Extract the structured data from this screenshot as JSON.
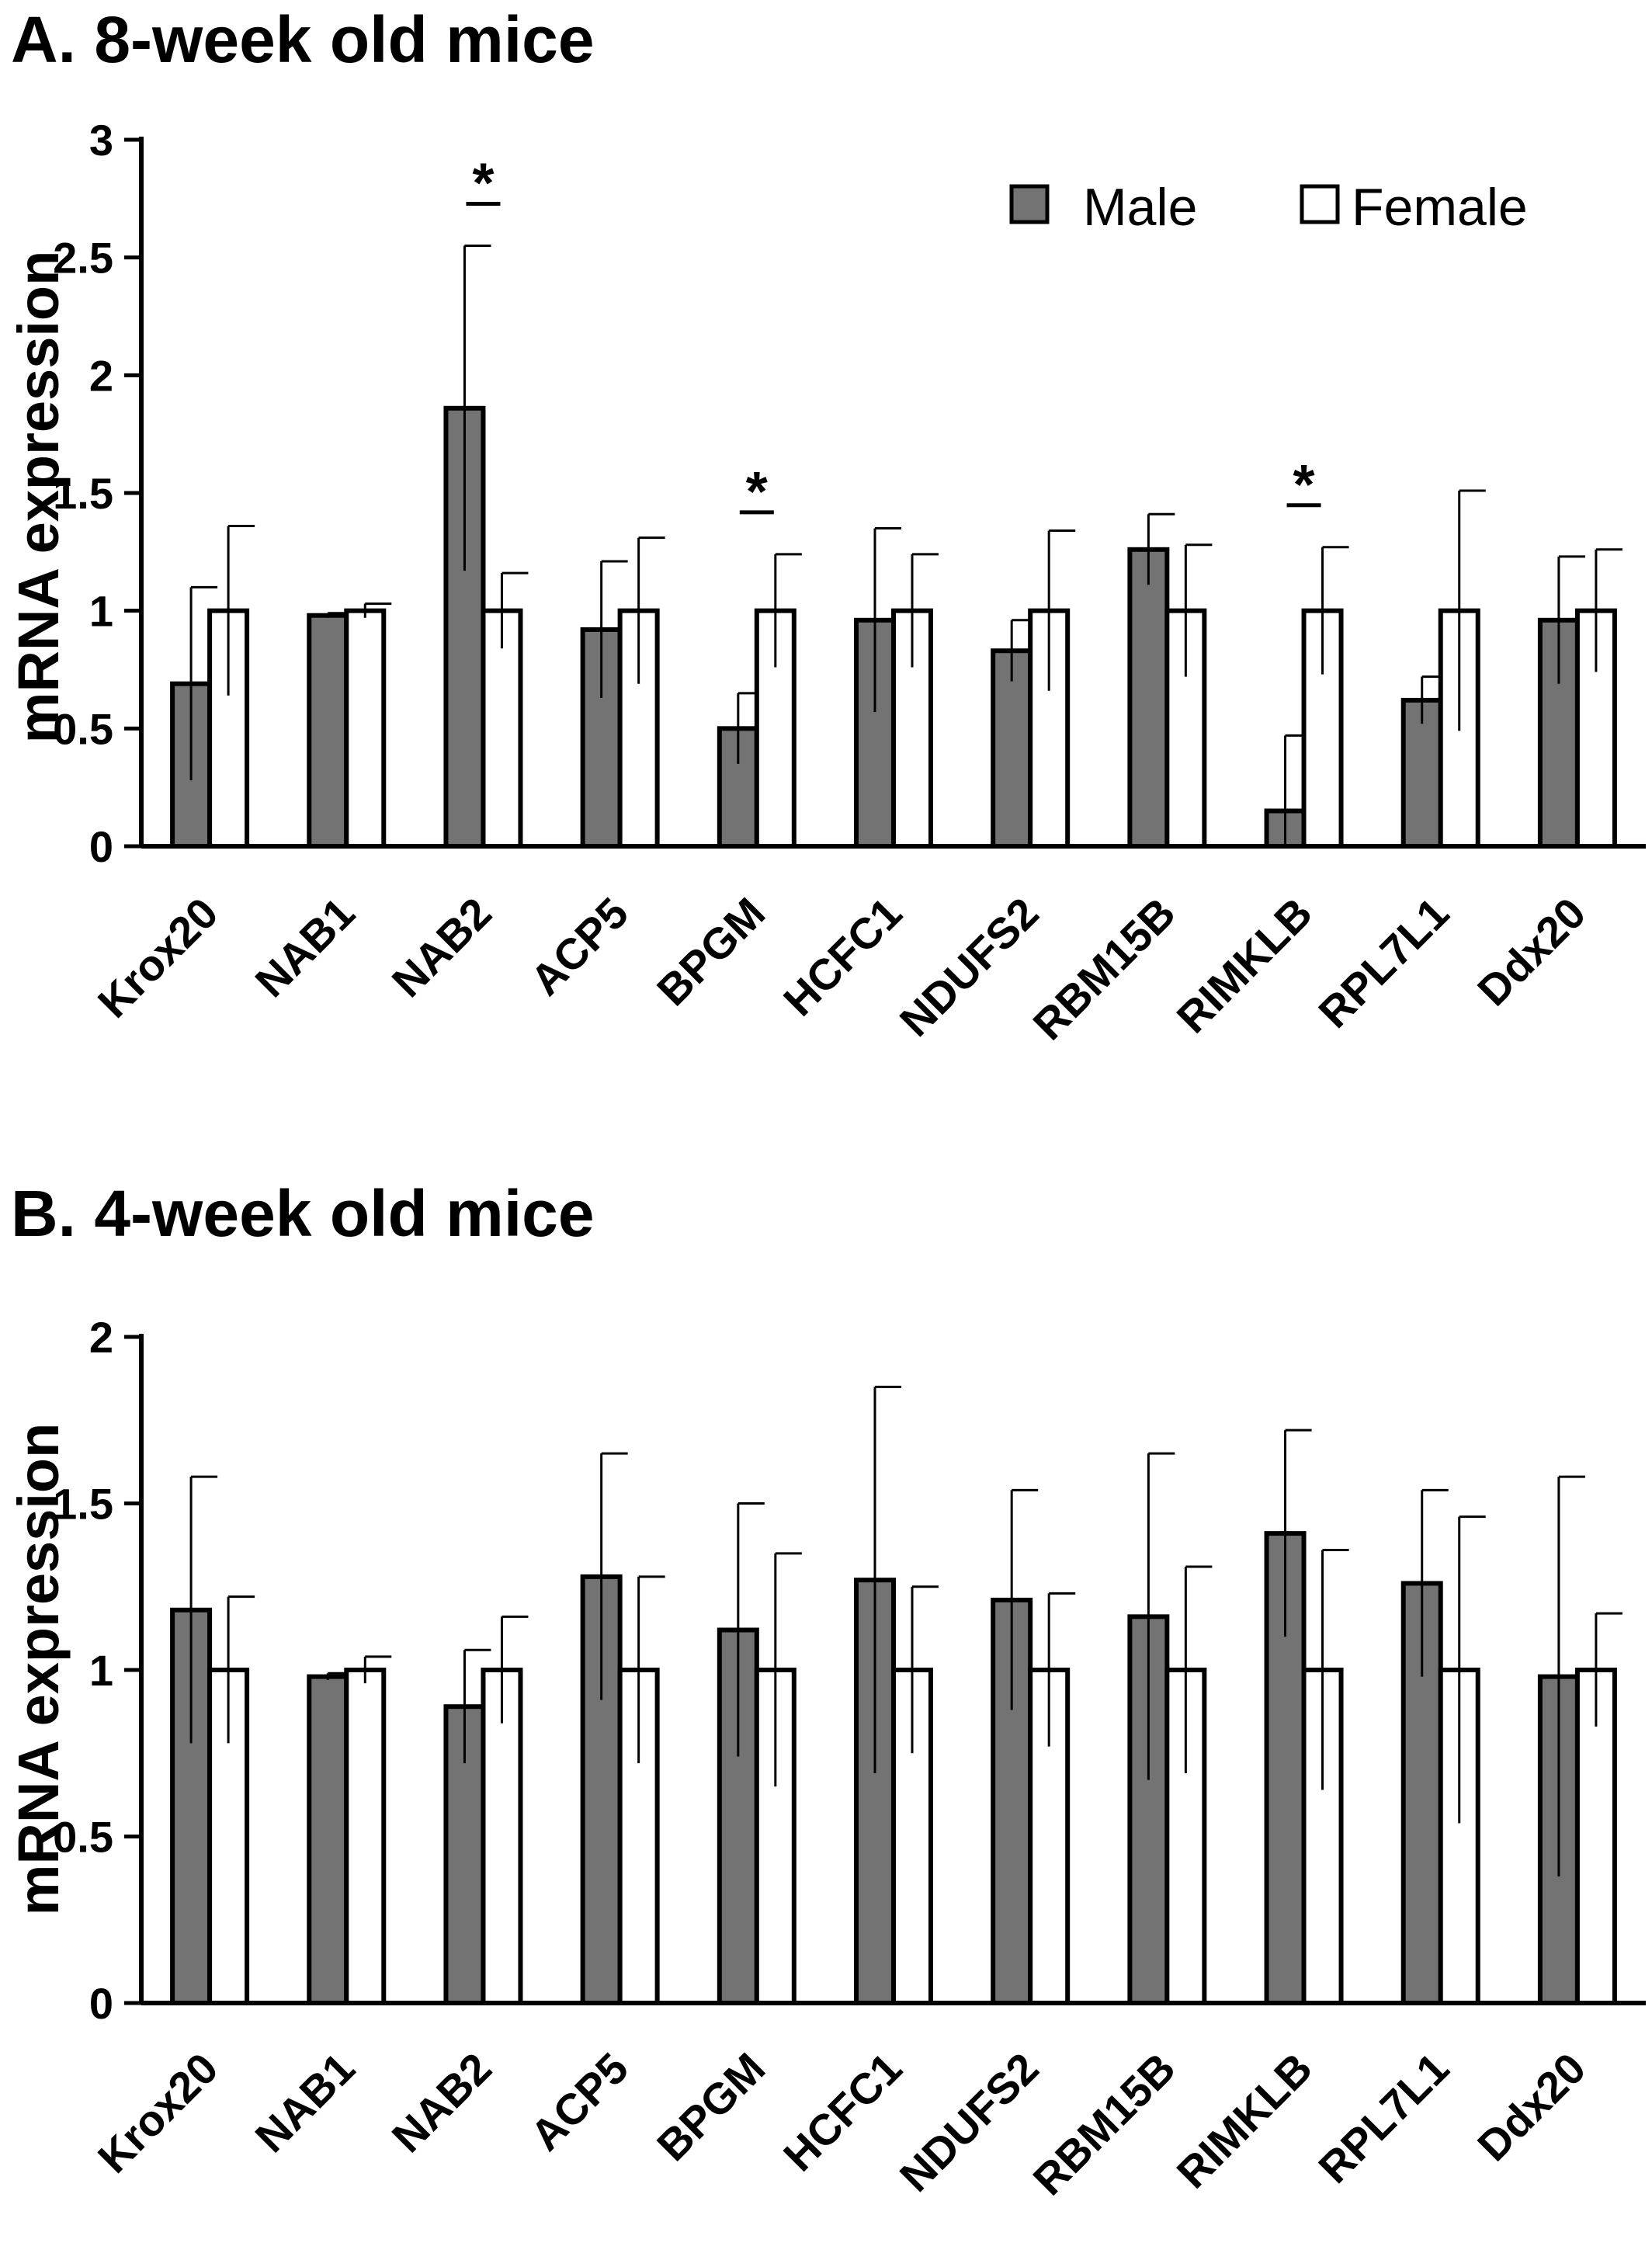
{
  "colors": {
    "male": "#737373",
    "female": "#ffffff",
    "stroke": "#000000"
  },
  "legend": {
    "male": "Male",
    "female": "Female"
  },
  "chart_data": [
    {
      "type": "bar",
      "title": "A. 8-week old mice",
      "xlabel": "",
      "ylabel": "mRNA expression",
      "ylim": [
        0,
        3
      ],
      "yticks": [
        "0",
        "0.5",
        "1",
        "1.5",
        "2",
        "2.5",
        "3"
      ],
      "legend_position": "top-right",
      "categories": [
        "Krox20",
        "NAB1",
        "NAB2",
        "ACP5",
        "BPGM",
        "HCFC1",
        "NDUFS2",
        "RBM15B",
        "RIMKLB",
        "RPL7L1",
        "Ddx20"
      ],
      "series": [
        {
          "name": "Male",
          "values": [
            0.69,
            0.98,
            1.86,
            0.92,
            0.5,
            0.96,
            0.83,
            1.26,
            0.15,
            0.62,
            0.96
          ],
          "errors": [
            0.41,
            0.01,
            0.69,
            0.29,
            0.15,
            0.39,
            0.13,
            0.15,
            0.32,
            0.1,
            0.27
          ]
        },
        {
          "name": "Female",
          "values": [
            1.0,
            1.0,
            1.0,
            1.0,
            1.0,
            1.0,
            1.0,
            1.0,
            1.0,
            1.0,
            1.0
          ],
          "errors": [
            0.36,
            0.03,
            0.16,
            0.31,
            0.24,
            0.24,
            0.34,
            0.28,
            0.27,
            0.51,
            0.26
          ]
        }
      ],
      "significance": {
        "marker": "*",
        "categories": [
          "NAB2",
          "BPGM",
          "RIMKLB"
        ]
      }
    },
    {
      "type": "bar",
      "title": "B. 4-week old mice",
      "xlabel": "",
      "ylabel": "mRNA expression",
      "ylim": [
        0,
        2
      ],
      "yticks": [
        "0",
        "0.5",
        "1",
        "1.5",
        "2"
      ],
      "categories": [
        "Krox20",
        "NAB1",
        "NAB2",
        "ACP5",
        "BPGM",
        "HCFC1",
        "NDUFS2",
        "RBM15B",
        "RIMKLB",
        "RPL7L1",
        "Ddx20"
      ],
      "series": [
        {
          "name": "Male",
          "values": [
            1.18,
            0.98,
            0.89,
            1.28,
            1.12,
            1.27,
            1.21,
            1.16,
            1.41,
            1.26,
            0.98
          ],
          "errors": [
            0.4,
            0.01,
            0.17,
            0.37,
            0.38,
            0.58,
            0.33,
            0.49,
            0.31,
            0.28,
            0.6
          ]
        },
        {
          "name": "Female",
          "values": [
            1.0,
            1.0,
            1.0,
            1.0,
            1.0,
            1.0,
            1.0,
            1.0,
            1.0,
            1.0,
            1.0
          ],
          "errors": [
            0.22,
            0.04,
            0.16,
            0.28,
            0.35,
            0.25,
            0.23,
            0.31,
            0.36,
            0.46,
            0.17
          ]
        }
      ]
    }
  ]
}
